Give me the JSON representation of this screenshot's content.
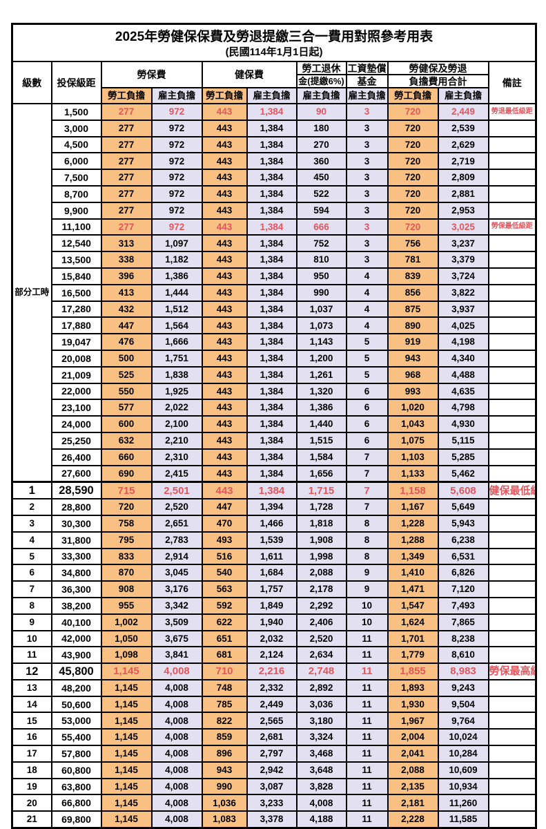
{
  "title": {
    "line1": "2025年勞健保保費及勞退提繳三合一費用對照參考用表",
    "line2": "(民國114年1月1日起)"
  },
  "header": {
    "level": "級數",
    "salary_bracket": "投保級距",
    "labor_insurance": "勞保費",
    "health_insurance": "健保費",
    "pension_line1": "勞工退休",
    "pension_line2": "金(提繳6%)",
    "wage_fund_line1": "工資墊償",
    "wage_fund_line2": "基金",
    "total_line1": "勞健保及勞退",
    "total_line2": "負擔費用合計",
    "employee_burden": "勞工負擔",
    "employer_burden": "雇主負擔",
    "notes": "備註"
  },
  "group_label": "部分工時",
  "group_rowspan": 23,
  "colors": {
    "employee_bg": "#F9C083",
    "employer_bg": "#E3E0F2",
    "highlight_text": "#E4555C",
    "border": "#000000"
  },
  "rows": [
    {
      "level": "",
      "salary": "1,500",
      "li_emp": "277",
      "li_er": "972",
      "hi_emp": "443",
      "hi_er": "1,384",
      "pension": "90",
      "fund": "3",
      "tot_emp": "720",
      "tot_er": "2,449",
      "note": "勞退最低級距",
      "red": true,
      "big": false,
      "thick_top": false
    },
    {
      "level": "",
      "salary": "3,000",
      "li_emp": "277",
      "li_er": "972",
      "hi_emp": "443",
      "hi_er": "1,384",
      "pension": "180",
      "fund": "3",
      "tot_emp": "720",
      "tot_er": "2,539",
      "note": "",
      "red": false,
      "big": false,
      "thick_top": false
    },
    {
      "level": "",
      "salary": "4,500",
      "li_emp": "277",
      "li_er": "972",
      "hi_emp": "443",
      "hi_er": "1,384",
      "pension": "270",
      "fund": "3",
      "tot_emp": "720",
      "tot_er": "2,629",
      "note": "",
      "red": false,
      "big": false,
      "thick_top": false
    },
    {
      "level": "",
      "salary": "6,000",
      "li_emp": "277",
      "li_er": "972",
      "hi_emp": "443",
      "hi_er": "1,384",
      "pension": "360",
      "fund": "3",
      "tot_emp": "720",
      "tot_er": "2,719",
      "note": "",
      "red": false,
      "big": false,
      "thick_top": false
    },
    {
      "level": "",
      "salary": "7,500",
      "li_emp": "277",
      "li_er": "972",
      "hi_emp": "443",
      "hi_er": "1,384",
      "pension": "450",
      "fund": "3",
      "tot_emp": "720",
      "tot_er": "2,809",
      "note": "",
      "red": false,
      "big": false,
      "thick_top": false
    },
    {
      "level": "",
      "salary": "8,700",
      "li_emp": "277",
      "li_er": "972",
      "hi_emp": "443",
      "hi_er": "1,384",
      "pension": "522",
      "fund": "3",
      "tot_emp": "720",
      "tot_er": "2,881",
      "note": "",
      "red": false,
      "big": false,
      "thick_top": false
    },
    {
      "level": "",
      "salary": "9,900",
      "li_emp": "277",
      "li_er": "972",
      "hi_emp": "443",
      "hi_er": "1,384",
      "pension": "594",
      "fund": "3",
      "tot_emp": "720",
      "tot_er": "2,953",
      "note": "",
      "red": false,
      "big": false,
      "thick_top": false
    },
    {
      "level": "",
      "salary": "11,100",
      "li_emp": "277",
      "li_er": "972",
      "hi_emp": "443",
      "hi_er": "1,384",
      "pension": "666",
      "fund": "3",
      "tot_emp": "720",
      "tot_er": "3,025",
      "note": "勞保最低級距",
      "red": true,
      "big": false,
      "thick_top": false
    },
    {
      "level": "",
      "salary": "12,540",
      "li_emp": "313",
      "li_er": "1,097",
      "hi_emp": "443",
      "hi_er": "1,384",
      "pension": "752",
      "fund": "3",
      "tot_emp": "756",
      "tot_er": "3,237",
      "note": "",
      "red": false,
      "big": false,
      "thick_top": false
    },
    {
      "level": "",
      "salary": "13,500",
      "li_emp": "338",
      "li_er": "1,182",
      "hi_emp": "443",
      "hi_er": "1,384",
      "pension": "810",
      "fund": "3",
      "tot_emp": "781",
      "tot_er": "3,379",
      "note": "",
      "red": false,
      "big": false,
      "thick_top": false
    },
    {
      "level": "",
      "salary": "15,840",
      "li_emp": "396",
      "li_er": "1,386",
      "hi_emp": "443",
      "hi_er": "1,384",
      "pension": "950",
      "fund": "4",
      "tot_emp": "839",
      "tot_er": "3,724",
      "note": "",
      "red": false,
      "big": false,
      "thick_top": false
    },
    {
      "level": "",
      "salary": "16,500",
      "li_emp": "413",
      "li_er": "1,444",
      "hi_emp": "443",
      "hi_er": "1,384",
      "pension": "990",
      "fund": "4",
      "tot_emp": "856",
      "tot_er": "3,822",
      "note": "",
      "red": false,
      "big": false,
      "thick_top": false
    },
    {
      "level": "",
      "salary": "17,280",
      "li_emp": "432",
      "li_er": "1,512",
      "hi_emp": "443",
      "hi_er": "1,384",
      "pension": "1,037",
      "fund": "4",
      "tot_emp": "875",
      "tot_er": "3,937",
      "note": "",
      "red": false,
      "big": false,
      "thick_top": false
    },
    {
      "level": "",
      "salary": "17,880",
      "li_emp": "447",
      "li_er": "1,564",
      "hi_emp": "443",
      "hi_er": "1,384",
      "pension": "1,073",
      "fund": "4",
      "tot_emp": "890",
      "tot_er": "4,025",
      "note": "",
      "red": false,
      "big": false,
      "thick_top": false
    },
    {
      "level": "",
      "salary": "19,047",
      "li_emp": "476",
      "li_er": "1,666",
      "hi_emp": "443",
      "hi_er": "1,384",
      "pension": "1,143",
      "fund": "5",
      "tot_emp": "919",
      "tot_er": "4,198",
      "note": "",
      "red": false,
      "big": false,
      "thick_top": false
    },
    {
      "level": "",
      "salary": "20,008",
      "li_emp": "500",
      "li_er": "1,751",
      "hi_emp": "443",
      "hi_er": "1,384",
      "pension": "1,200",
      "fund": "5",
      "tot_emp": "943",
      "tot_er": "4,340",
      "note": "",
      "red": false,
      "big": false,
      "thick_top": false
    },
    {
      "level": "",
      "salary": "21,009",
      "li_emp": "525",
      "li_er": "1,838",
      "hi_emp": "443",
      "hi_er": "1,384",
      "pension": "1,261",
      "fund": "5",
      "tot_emp": "968",
      "tot_er": "4,488",
      "note": "",
      "red": false,
      "big": false,
      "thick_top": false
    },
    {
      "level": "",
      "salary": "22,000",
      "li_emp": "550",
      "li_er": "1,925",
      "hi_emp": "443",
      "hi_er": "1,384",
      "pension": "1,320",
      "fund": "6",
      "tot_emp": "993",
      "tot_er": "4,635",
      "note": "",
      "red": false,
      "big": false,
      "thick_top": false
    },
    {
      "level": "",
      "salary": "23,100",
      "li_emp": "577",
      "li_er": "2,022",
      "hi_emp": "443",
      "hi_er": "1,384",
      "pension": "1,386",
      "fund": "6",
      "tot_emp": "1,020",
      "tot_er": "4,798",
      "note": "",
      "red": false,
      "big": false,
      "thick_top": false
    },
    {
      "level": "",
      "salary": "24,000",
      "li_emp": "600",
      "li_er": "2,100",
      "hi_emp": "443",
      "hi_er": "1,384",
      "pension": "1,440",
      "fund": "6",
      "tot_emp": "1,043",
      "tot_er": "4,930",
      "note": "",
      "red": false,
      "big": false,
      "thick_top": false
    },
    {
      "level": "",
      "salary": "25,250",
      "li_emp": "632",
      "li_er": "2,210",
      "hi_emp": "443",
      "hi_er": "1,384",
      "pension": "1,515",
      "fund": "6",
      "tot_emp": "1,075",
      "tot_er": "5,115",
      "note": "",
      "red": false,
      "big": false,
      "thick_top": false
    },
    {
      "level": "",
      "salary": "26,400",
      "li_emp": "660",
      "li_er": "2,310",
      "hi_emp": "443",
      "hi_er": "1,384",
      "pension": "1,584",
      "fund": "7",
      "tot_emp": "1,103",
      "tot_er": "5,285",
      "note": "",
      "red": false,
      "big": false,
      "thick_top": false
    },
    {
      "level": "",
      "salary": "27,600",
      "li_emp": "690",
      "li_er": "2,415",
      "hi_emp": "443",
      "hi_er": "1,384",
      "pension": "1,656",
      "fund": "7",
      "tot_emp": "1,133",
      "tot_er": "5,462",
      "note": "",
      "red": false,
      "big": false,
      "thick_top": false
    },
    {
      "level": "1",
      "salary": "28,590",
      "li_emp": "715",
      "li_er": "2,501",
      "hi_emp": "443",
      "hi_er": "1,384",
      "pension": "1,715",
      "fund": "7",
      "tot_emp": "1,158",
      "tot_er": "5,608",
      "note": "健保最低級距",
      "red": true,
      "big": true,
      "thick_top": true
    },
    {
      "level": "2",
      "salary": "28,800",
      "li_emp": "720",
      "li_er": "2,520",
      "hi_emp": "447",
      "hi_er": "1,394",
      "pension": "1,728",
      "fund": "7",
      "tot_emp": "1,167",
      "tot_er": "5,649",
      "note": "",
      "red": false,
      "big": false,
      "thick_top": false
    },
    {
      "level": "3",
      "salary": "30,300",
      "li_emp": "758",
      "li_er": "2,651",
      "hi_emp": "470",
      "hi_er": "1,466",
      "pension": "1,818",
      "fund": "8",
      "tot_emp": "1,228",
      "tot_er": "5,943",
      "note": "",
      "red": false,
      "big": false,
      "thick_top": false
    },
    {
      "level": "4",
      "salary": "31,800",
      "li_emp": "795",
      "li_er": "2,783",
      "hi_emp": "493",
      "hi_er": "1,539",
      "pension": "1,908",
      "fund": "8",
      "tot_emp": "1,288",
      "tot_er": "6,238",
      "note": "",
      "red": false,
      "big": false,
      "thick_top": false
    },
    {
      "level": "5",
      "salary": "33,300",
      "li_emp": "833",
      "li_er": "2,914",
      "hi_emp": "516",
      "hi_er": "1,611",
      "pension": "1,998",
      "fund": "8",
      "tot_emp": "1,349",
      "tot_er": "6,531",
      "note": "",
      "red": false,
      "big": false,
      "thick_top": false
    },
    {
      "level": "6",
      "salary": "34,800",
      "li_emp": "870",
      "li_er": "3,045",
      "hi_emp": "540",
      "hi_er": "1,684",
      "pension": "2,088",
      "fund": "9",
      "tot_emp": "1,410",
      "tot_er": "6,826",
      "note": "",
      "red": false,
      "big": false,
      "thick_top": false
    },
    {
      "level": "7",
      "salary": "36,300",
      "li_emp": "908",
      "li_er": "3,176",
      "hi_emp": "563",
      "hi_er": "1,757",
      "pension": "2,178",
      "fund": "9",
      "tot_emp": "1,471",
      "tot_er": "7,120",
      "note": "",
      "red": false,
      "big": false,
      "thick_top": false
    },
    {
      "level": "8",
      "salary": "38,200",
      "li_emp": "955",
      "li_er": "3,342",
      "hi_emp": "592",
      "hi_er": "1,849",
      "pension": "2,292",
      "fund": "10",
      "tot_emp": "1,547",
      "tot_er": "7,493",
      "note": "",
      "red": false,
      "big": false,
      "thick_top": false
    },
    {
      "level": "9",
      "salary": "40,100",
      "li_emp": "1,002",
      "li_er": "3,509",
      "hi_emp": "622",
      "hi_er": "1,940",
      "pension": "2,406",
      "fund": "10",
      "tot_emp": "1,624",
      "tot_er": "7,865",
      "note": "",
      "red": false,
      "big": false,
      "thick_top": false
    },
    {
      "level": "10",
      "salary": "42,000",
      "li_emp": "1,050",
      "li_er": "3,675",
      "hi_emp": "651",
      "hi_er": "2,032",
      "pension": "2,520",
      "fund": "11",
      "tot_emp": "1,701",
      "tot_er": "8,238",
      "note": "",
      "red": false,
      "big": false,
      "thick_top": false
    },
    {
      "level": "11",
      "salary": "43,900",
      "li_emp": "1,098",
      "li_er": "3,841",
      "hi_emp": "681",
      "hi_er": "2,124",
      "pension": "2,634",
      "fund": "11",
      "tot_emp": "1,779",
      "tot_er": "8,610",
      "note": "",
      "red": false,
      "big": false,
      "thick_top": false
    },
    {
      "level": "12",
      "salary": "45,800",
      "li_emp": "1,145",
      "li_er": "4,008",
      "hi_emp": "710",
      "hi_er": "2,216",
      "pension": "2,748",
      "fund": "11",
      "tot_emp": "1,855",
      "tot_er": "8,983",
      "note": "勞保最高級距",
      "red": true,
      "big": true,
      "thick_top": false
    },
    {
      "level": "13",
      "salary": "48,200",
      "li_emp": "1,145",
      "li_er": "4,008",
      "hi_emp": "748",
      "hi_er": "2,332",
      "pension": "2,892",
      "fund": "11",
      "tot_emp": "1,893",
      "tot_er": "9,243",
      "note": "",
      "red": false,
      "big": false,
      "thick_top": false
    },
    {
      "level": "14",
      "salary": "50,600",
      "li_emp": "1,145",
      "li_er": "4,008",
      "hi_emp": "785",
      "hi_er": "2,449",
      "pension": "3,036",
      "fund": "11",
      "tot_emp": "1,930",
      "tot_er": "9,504",
      "note": "",
      "red": false,
      "big": false,
      "thick_top": false
    },
    {
      "level": "15",
      "salary": "53,000",
      "li_emp": "1,145",
      "li_er": "4,008",
      "hi_emp": "822",
      "hi_er": "2,565",
      "pension": "3,180",
      "fund": "11",
      "tot_emp": "1,967",
      "tot_er": "9,764",
      "note": "",
      "red": false,
      "big": false,
      "thick_top": false
    },
    {
      "level": "16",
      "salary": "55,400",
      "li_emp": "1,145",
      "li_er": "4,008",
      "hi_emp": "859",
      "hi_er": "2,681",
      "pension": "3,324",
      "fund": "11",
      "tot_emp": "2,004",
      "tot_er": "10,024",
      "note": "",
      "red": false,
      "big": false,
      "thick_top": false
    },
    {
      "level": "17",
      "salary": "57,800",
      "li_emp": "1,145",
      "li_er": "4,008",
      "hi_emp": "896",
      "hi_er": "2,797",
      "pension": "3,468",
      "fund": "11",
      "tot_emp": "2,041",
      "tot_er": "10,284",
      "note": "",
      "red": false,
      "big": false,
      "thick_top": false
    },
    {
      "level": "18",
      "salary": "60,800",
      "li_emp": "1,145",
      "li_er": "4,008",
      "hi_emp": "943",
      "hi_er": "2,942",
      "pension": "3,648",
      "fund": "11",
      "tot_emp": "2,088",
      "tot_er": "10,609",
      "note": "",
      "red": false,
      "big": false,
      "thick_top": false
    },
    {
      "level": "19",
      "salary": "63,800",
      "li_emp": "1,145",
      "li_er": "4,008",
      "hi_emp": "990",
      "hi_er": "3,087",
      "pension": "3,828",
      "fund": "11",
      "tot_emp": "2,135",
      "tot_er": "10,934",
      "note": "",
      "red": false,
      "big": false,
      "thick_top": false
    },
    {
      "level": "20",
      "salary": "66,800",
      "li_emp": "1,145",
      "li_er": "4,008",
      "hi_emp": "1,036",
      "hi_er": "3,233",
      "pension": "4,008",
      "fund": "11",
      "tot_emp": "2,181",
      "tot_er": "11,260",
      "note": "",
      "red": false,
      "big": false,
      "thick_top": false
    },
    {
      "level": "21",
      "salary": "69,800",
      "li_emp": "1,145",
      "li_er": "4,008",
      "hi_emp": "1,083",
      "hi_er": "3,378",
      "pension": "4,188",
      "fund": "11",
      "tot_emp": "2,228",
      "tot_er": "11,585",
      "note": "",
      "red": false,
      "big": false,
      "thick_top": false
    }
  ]
}
